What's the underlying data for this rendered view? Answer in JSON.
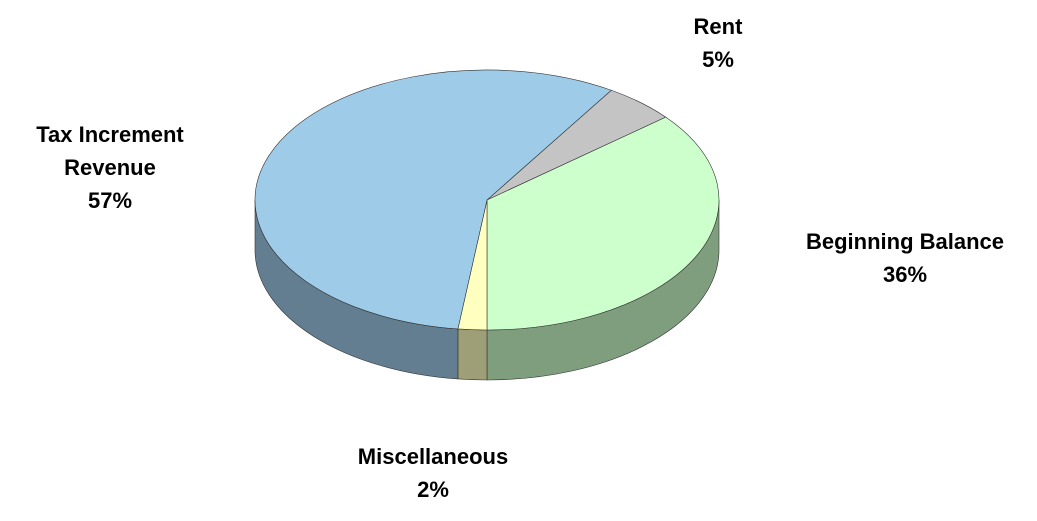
{
  "chart_data": {
    "type": "pie3d",
    "categories": [
      "Rent",
      "Beginning Balance",
      "Miscellaneous",
      "Tax Increment Revenue"
    ],
    "values": [
      5,
      36,
      2,
      57
    ],
    "value_labels": [
      "5%",
      "36%",
      "2%",
      "57%"
    ],
    "colors": [
      "#c4c4c4",
      "#ccffcc",
      "#ffffc0",
      "#9ecbe8"
    ]
  }
}
